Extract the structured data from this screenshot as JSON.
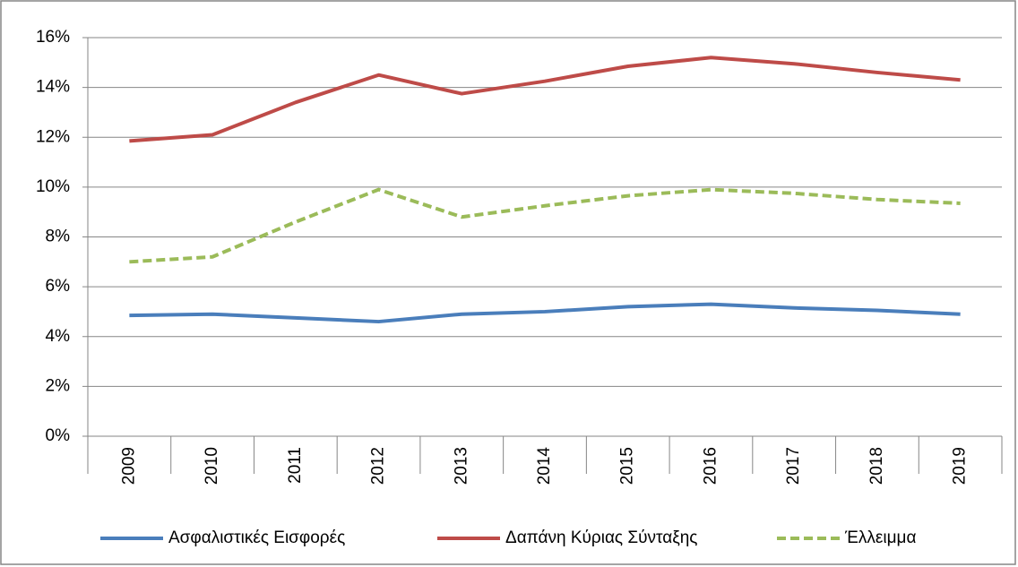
{
  "chart_data": {
    "type": "line",
    "categories": [
      "2009",
      "2010",
      "2011",
      "2012",
      "2013",
      "2014",
      "2015",
      "2016",
      "2017",
      "2018",
      "2019"
    ],
    "series": [
      {
        "name": "Ασφαλιστικές Εισφορές",
        "color": "#4a7ebb",
        "dashed": false,
        "values": [
          4.85,
          4.9,
          4.75,
          4.6,
          4.9,
          5.0,
          5.2,
          5.3,
          5.15,
          5.05,
          4.9
        ]
      },
      {
        "name": "Δαπάνη Κύριας Σύνταξης",
        "color": "#be4b48",
        "dashed": false,
        "values": [
          11.85,
          12.1,
          13.4,
          14.5,
          13.75,
          14.25,
          14.85,
          15.2,
          14.95,
          14.6,
          14.3
        ]
      },
      {
        "name": "Έλλειμμα",
        "color": "#9bbb59",
        "dashed": true,
        "values": [
          7.0,
          7.2,
          8.6,
          9.9,
          8.8,
          9.25,
          9.65,
          9.9,
          9.75,
          9.5,
          9.35
        ]
      }
    ],
    "ylim": [
      0,
      16
    ],
    "yticks": [
      {
        "value": 0,
        "label": "0%"
      },
      {
        "value": 2,
        "label": "2%"
      },
      {
        "value": 4,
        "label": "4%"
      },
      {
        "value": 6,
        "label": "6%"
      },
      {
        "value": 8,
        "label": "8%"
      },
      {
        "value": 10,
        "label": "10%"
      },
      {
        "value": 12,
        "label": "12%"
      },
      {
        "value": 14,
        "label": "14%"
      },
      {
        "value": 16,
        "label": "16%"
      }
    ],
    "grid": true,
    "legend": "bottom"
  }
}
